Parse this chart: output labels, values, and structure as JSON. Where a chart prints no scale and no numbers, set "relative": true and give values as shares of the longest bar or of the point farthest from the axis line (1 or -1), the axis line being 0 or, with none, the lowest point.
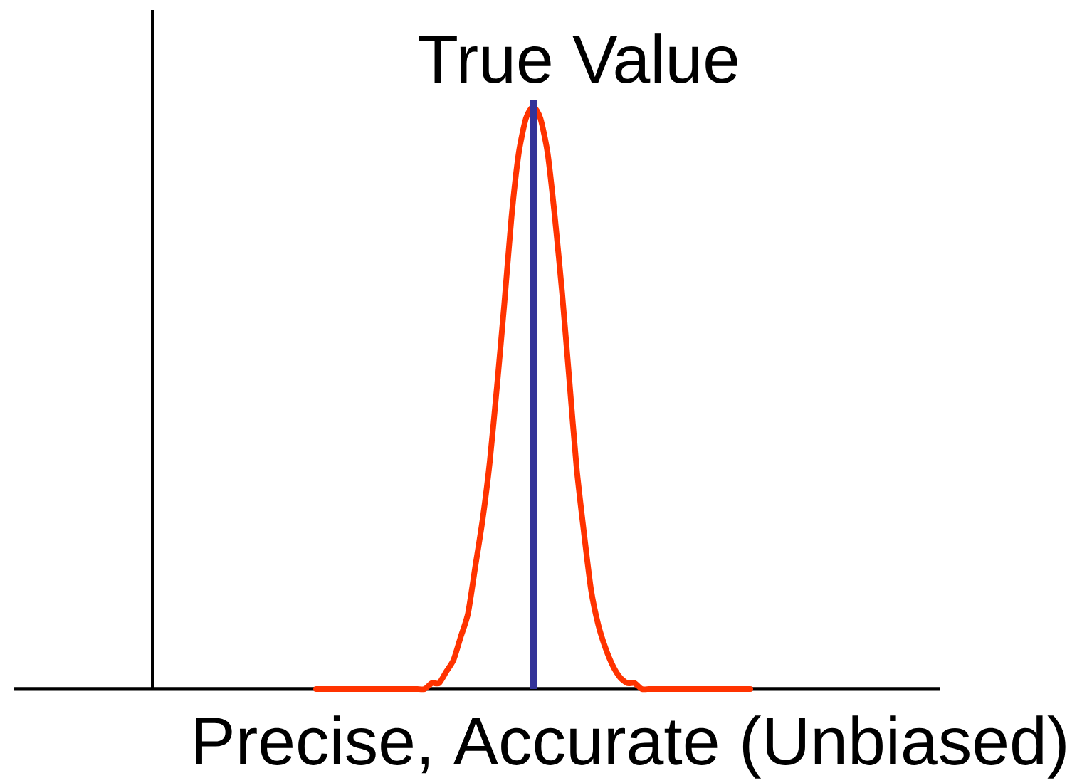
{
  "chart_data": {
    "type": "line",
    "relative": true,
    "xlabel": "Precise, Accurate (Unbiased)",
    "categories": [
      null,
      null,
      null,
      null,
      null,
      null,
      null,
      null,
      null,
      null,
      null,
      null,
      null,
      null,
      null,
      null,
      null,
      null,
      null,
      null,
      null,
      null,
      null,
      null,
      null,
      null,
      null,
      null,
      null,
      null,
      null,
      null,
      null,
      null,
      null,
      null,
      null,
      null,
      null,
      null,
      null,
      null,
      null,
      null,
      null,
      null,
      null,
      null,
      null,
      null,
      null,
      null,
      null,
      null,
      null,
      null,
      null,
      null,
      null,
      null,
      null
    ],
    "series": [
      {
        "color": "#ff3300",
        "values": [
          0,
          0,
          0,
          0,
          0,
          0,
          0,
          0,
          0,
          0,
          0,
          0,
          0,
          0,
          0,
          0,
          0.01,
          0.01,
          0.03,
          0.05,
          0.09,
          0.13,
          0.21,
          0.29,
          0.39,
          0.52,
          0.66,
          0.81,
          0.92,
          0.98,
          1,
          0.98,
          0.92,
          0.81,
          0.68,
          0.53,
          0.38,
          0.27,
          0.17,
          0.11,
          0.07,
          0.04,
          0.02,
          0.01,
          0.01,
          0,
          0,
          0,
          0,
          0,
          0,
          0,
          0,
          0,
          0,
          0,
          0,
          0,
          0,
          0,
          0
        ]
      }
    ],
    "annotations": [
      "True Value"
    ]
  }
}
